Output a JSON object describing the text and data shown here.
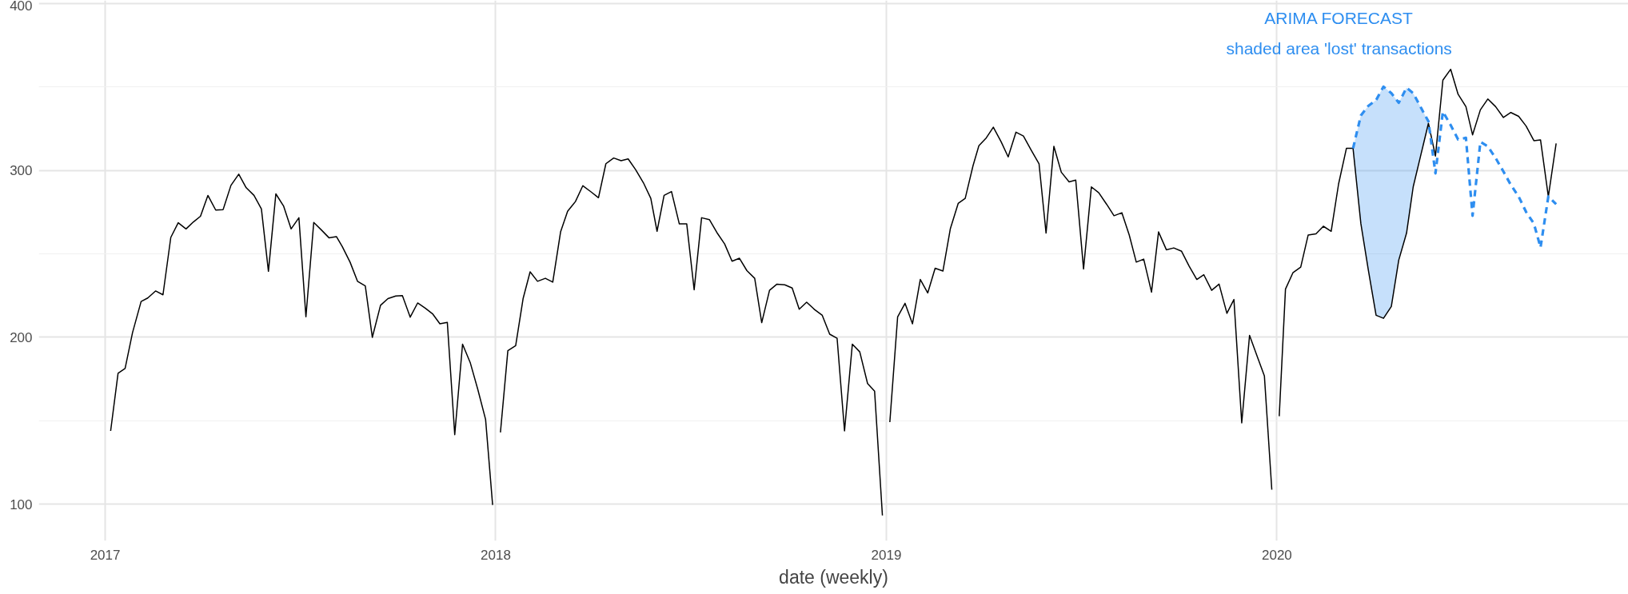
{
  "chart_data": {
    "type": "line",
    "xlabel": "date (weekly)",
    "annotations": [
      "ARIMA FORECAST",
      "shaded area 'lost' transactions"
    ],
    "xlim": [
      2016.83,
      2020.9
    ],
    "ylim": [
      78,
      402
    ],
    "xticks": [
      2017,
      2018,
      2019,
      2020
    ],
    "yticks": [
      100,
      200,
      300,
      400
    ],
    "grid": true,
    "marker": "none",
    "series": [
      {
        "color": "#000000",
        "line_style": "solid",
        "x": [
          2017.014,
          2017.033,
          2017.051,
          2017.07,
          2017.092,
          2017.109,
          2017.129,
          2017.148,
          2017.168,
          2017.187,
          2017.207,
          2017.226,
          2017.244,
          2017.263,
          2017.283,
          2017.302,
          2017.322,
          2017.342,
          2017.361,
          2017.381,
          2017.4,
          2017.418,
          2017.437,
          2017.457,
          2017.476,
          2017.496,
          2017.514,
          2017.534,
          2017.553,
          2017.573,
          2017.592,
          2017.607,
          2017.627,
          2017.646,
          2017.666,
          2017.684,
          2017.705,
          2017.724,
          2017.744,
          2017.761,
          2017.781,
          2017.8,
          2017.82,
          2017.839,
          2017.857,
          2017.876,
          2017.895,
          2017.915,
          2017.935,
          2017.954,
          2017.974,
          2017.992,
          2018.002,
          2018.012,
          2018.031,
          2018.051,
          2018.07,
          2018.088,
          2018.107,
          2018.127,
          2018.146,
          2018.166,
          2018.184,
          2018.204,
          2018.223,
          2018.244,
          2018.263,
          2018.282,
          2018.302,
          2018.321,
          2018.339,
          2018.358,
          2018.378,
          2018.397,
          2018.413,
          2018.431,
          2018.45,
          2018.47,
          2018.489,
          2018.508,
          2018.527,
          2018.547,
          2018.566,
          2018.586,
          2018.605,
          2018.624,
          2018.643,
          2018.663,
          2018.681,
          2018.701,
          2018.72,
          2018.74,
          2018.759,
          2018.777,
          2018.796,
          2018.816,
          2018.836,
          2018.855,
          2018.874,
          2018.893,
          2018.913,
          2018.932,
          2018.952,
          2018.97,
          2018.99,
          2019.0,
          2019.009,
          2019.029,
          2019.048,
          2019.067,
          2019.087,
          2019.106,
          2019.125,
          2019.145,
          2019.164,
          2019.184,
          2019.202,
          2019.222,
          2019.237,
          2019.256,
          2019.274,
          2019.294,
          2019.312,
          2019.332,
          2019.351,
          2019.371,
          2019.391,
          2019.409,
          2019.429,
          2019.448,
          2019.468,
          2019.485,
          2019.505,
          2019.525,
          2019.544,
          2019.564,
          2019.583,
          2019.603,
          2019.622,
          2019.64,
          2019.659,
          2019.679,
          2019.697,
          2019.717,
          2019.736,
          2019.756,
          2019.775,
          2019.795,
          2019.813,
          2019.833,
          2019.852,
          2019.872,
          2019.89,
          2019.91,
          2019.93,
          2019.949,
          2019.968,
          2019.987,
          2019.997,
          2020.006,
          2020.022,
          2020.041,
          2020.061,
          2020.08,
          2020.1,
          2020.119,
          2020.139,
          2020.158,
          2020.178,
          2020.195,
          2020.215,
          2020.234,
          2020.254,
          2020.273,
          2020.293,
          2020.312,
          2020.332,
          2020.349,
          2020.369,
          2020.388,
          2020.406,
          2020.425,
          2020.445,
          2020.464,
          2020.484,
          2020.501,
          2020.521,
          2020.54,
          2020.56,
          2020.58,
          2020.599,
          2020.619,
          2020.638,
          2020.658,
          2020.675,
          2020.695,
          2020.715
        ],
        "values": [
          143.9,
          178.5,
          181.3,
          202.8,
          221.5,
          223.6,
          227.8,
          225.5,
          259.9,
          268.7,
          265,
          269.2,
          272.6,
          285.1,
          276.3,
          276.6,
          291.1,
          297.8,
          289.7,
          285.1,
          277,
          239.6,
          286,
          278.6,
          265,
          271.7,
          212.3,
          268.9,
          264.5,
          259.7,
          260.4,
          254.4,
          245.1,
          233.6,
          230.8,
          200,
          219.2,
          223.2,
          224.8,
          225,
          212.1,
          220.6,
          217.4,
          213.9,
          208.1,
          209,
          141.6,
          195.9,
          184.6,
          168.8,
          150.8,
          99.5,
          null,
          143,
          192,
          195,
          223.2,
          239.3,
          233.6,
          235.4,
          233.1,
          263.2,
          275.6,
          281.4,
          290.9,
          287.2,
          283.7,
          304.1,
          307.5,
          305.9,
          307,
          300.6,
          292.7,
          283.3,
          263.6,
          285.1,
          287.4,
          268,
          268,
          228.5,
          271.7,
          270.6,
          262.9,
          256,
          245.6,
          247.4,
          240,
          235.4,
          208.8,
          228.2,
          231.9,
          231.5,
          229.6,
          216.9,
          221.1,
          216.7,
          213.2,
          201.9,
          199.4,
          143.9,
          195.9,
          191.3,
          172.3,
          167.7,
          93.2,
          null,
          149.2,
          212.3,
          220.4,
          208.1,
          234.7,
          226.6,
          241.4,
          239.8,
          265.2,
          280.3,
          283.3,
          302.9,
          314.9,
          319.6,
          326,
          317.2,
          308.2,
          323,
          320.7,
          312.2,
          304.1,
          262.5,
          314.5,
          299,
          293.2,
          294.3,
          241,
          290.2,
          286.7,
          279.8,
          272.9,
          274.7,
          261.3,
          245.1,
          246.9,
          227.1,
          263.2,
          252.5,
          253.6,
          251.6,
          242.8,
          234.7,
          237.5,
          228.2,
          231.9,
          214.4,
          222.7,
          148.7,
          201.2,
          189,
          176.9,
          108.7,
          null,
          152.7,
          228.9,
          238.7,
          242.1,
          261.3,
          262,
          266.6,
          263.6,
          292,
          313.3,
          313.3,
          268.2,
          240.5,
          213.2,
          211.4,
          218.5,
          246.3,
          262.5,
          290.2,
          309.8,
          328.3,
          308.7,
          354.2,
          360.7,
          345.7,
          338.3,
          321.4,
          336.4,
          342.9,
          338.3,
          331.8,
          334.8,
          332.5,
          326.7,
          317.9,
          318.4,
          284.4,
          316.3
        ]
      },
      {
        "color": "#2e8ef0",
        "line_style": "dashed",
        "x": [
          2020.195,
          2020.215,
          2020.234,
          2020.254,
          2020.273,
          2020.293,
          2020.312,
          2020.332,
          2020.349,
          2020.369,
          2020.388,
          2020.406,
          2020.425,
          2020.445,
          2020.464,
          2020.484,
          2020.501,
          2020.521,
          2020.54,
          2020.56,
          2020.58,
          2020.599,
          2020.619,
          2020.638,
          2020.658,
          2020.675,
          2020.695,
          2020.715
        ],
        "values": [
          313.3,
          333,
          338.7,
          342.2,
          350.3,
          346.4,
          340.6,
          349.6,
          346.4,
          337.6,
          329.5,
          298.3,
          335.3,
          327.2,
          318.6,
          319.6,
          272.9,
          317.2,
          314.5,
          307.5,
          299.4,
          291.4,
          284.4,
          275.2,
          268.2,
          253.9,
          284.4,
          279.8
        ],
        "lower": [
          313.3,
          268.2,
          240.5,
          213.2,
          211.4,
          218.5,
          246.3,
          262.5,
          290.2,
          309.8,
          328.3,
          null,
          null,
          null,
          null,
          null,
          null,
          null,
          null,
          null,
          null,
          null,
          null,
          null,
          null,
          null,
          null,
          null
        ],
        "upper": [
          313.3,
          333,
          338.7,
          342.2,
          350.3,
          346.4,
          340.6,
          349.6,
          346.4,
          337.6,
          329.5,
          null,
          null,
          null,
          null,
          null,
          null,
          null,
          null,
          null,
          null,
          null,
          null,
          null,
          null,
          null,
          null,
          null
        ]
      }
    ]
  }
}
